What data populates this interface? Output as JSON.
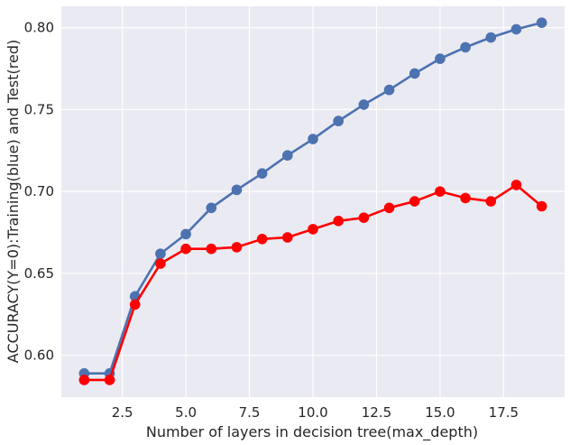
{
  "chart_data": {
    "type": "line",
    "title": "",
    "xlabel": "Number of layers in decision tree(max_depth)",
    "ylabel": "ACCURACY(Y=0):Training(blue) and Test(red)",
    "xlim": [
      0.1,
      19.9
    ],
    "ylim": [
      0.5745,
      0.813
    ],
    "xticks": [
      2.5,
      5.0,
      7.5,
      10.0,
      12.5,
      15.0,
      17.5
    ],
    "xtick_labels": [
      "2.5",
      "5.0",
      "7.5",
      "10.0",
      "12.5",
      "15.0",
      "17.5"
    ],
    "yticks": [
      0.6,
      0.65,
      0.7,
      0.75,
      0.8
    ],
    "ytick_labels": [
      "0.60",
      "0.65",
      "0.70",
      "0.75",
      "0.80"
    ],
    "grid": true,
    "background": "#eaeaf2",
    "x": [
      1,
      2,
      3,
      4,
      5,
      6,
      7,
      8,
      9,
      10,
      11,
      12,
      13,
      14,
      15,
      16,
      17,
      18,
      19
    ],
    "series": [
      {
        "color": "#4c72b0",
        "values": [
          0.589,
          0.589,
          0.636,
          0.662,
          0.674,
          0.69,
          0.701,
          0.711,
          0.722,
          0.732,
          0.743,
          0.753,
          0.762,
          0.772,
          0.781,
          0.788,
          0.794,
          0.799,
          0.803
        ]
      },
      {
        "color": "#ff0000",
        "values": [
          0.585,
          0.585,
          0.631,
          0.656,
          0.665,
          0.665,
          0.666,
          0.671,
          0.672,
          0.677,
          0.682,
          0.684,
          0.69,
          0.694,
          0.7,
          0.696,
          0.694,
          0.704,
          0.691
        ]
      }
    ]
  }
}
